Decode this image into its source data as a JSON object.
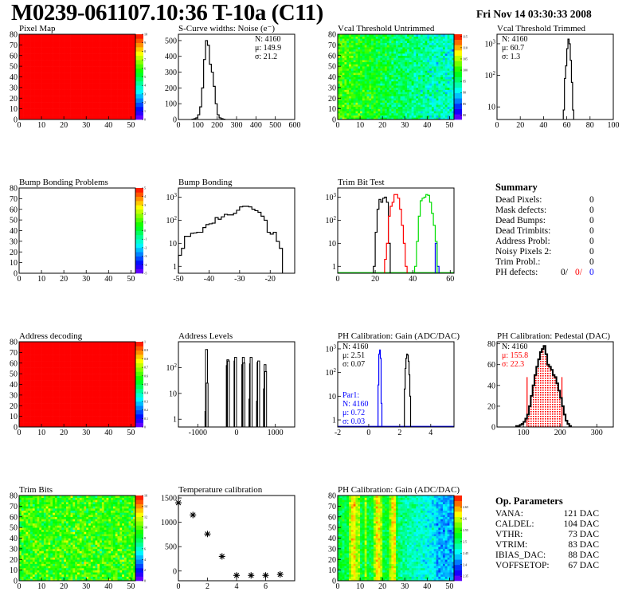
{
  "header": {
    "title": "M0239-061107.10:36 T-10a (C11)",
    "date": "Fri Nov 14 03:30:33 2008"
  },
  "summary": {
    "title": "Summary",
    "rows": [
      {
        "label": "Dead Pixels:",
        "value": "0"
      },
      {
        "label": "Mask defects:",
        "value": "0"
      },
      {
        "label": "Dead Bumps:",
        "value": "0"
      },
      {
        "label": "Dead Trimbits:",
        "value": "0"
      },
      {
        "label": "Address Probl:",
        "value": "0"
      },
      {
        "label": "Noisy Pixels 2:",
        "value": "0"
      },
      {
        "label": "Trim Probl.:",
        "value": "0"
      }
    ],
    "ph_defects": {
      "label": "PH defects:",
      "v1": "0/",
      "v2": "0/",
      "v3": "0",
      "c1": "#000000",
      "c2": "#ff0000",
      "c3": "#0000ff"
    }
  },
  "op_parameters": {
    "title": "Op. Parameters",
    "rows": [
      {
        "label": "VANA:",
        "value": "121 DAC"
      },
      {
        "label": "CALDEL:",
        "value": "104 DAC"
      },
      {
        "label": "VTHR:",
        "value": "73 DAC"
      },
      {
        "label": "VTRIM:",
        "value": "83 DAC"
      },
      {
        "label": "IBIAS_DAC:",
        "value": "88 DAC"
      },
      {
        "label": "VOFFSETOP:",
        "value": "67 DAC"
      }
    ]
  },
  "chart_data": [
    {
      "id": "pixel-map",
      "title": "Pixel Map",
      "type": "heatmap",
      "row": 0,
      "col": 0,
      "xlim": [
        0,
        52
      ],
      "ylim": [
        0,
        80
      ],
      "xticks": [
        0,
        10,
        20,
        30,
        40,
        50
      ],
      "yticks": [
        0,
        10,
        20,
        30,
        40,
        50,
        60,
        70,
        80
      ],
      "zlim": [
        0,
        10
      ],
      "zticks": [
        0,
        1,
        2,
        3,
        4,
        5,
        6,
        7,
        8,
        9,
        10
      ],
      "fill": "uniform",
      "uniform_value": 10
    },
    {
      "id": "s-curve",
      "title": "S-Curve widths: Noise (e⁻)",
      "type": "bar",
      "row": 0,
      "col": 1,
      "xlim": [
        0,
        600
      ],
      "ylim": [
        0,
        540
      ],
      "xticks": [
        0,
        100,
        200,
        300,
        400,
        500,
        600
      ],
      "yticks": [
        0,
        100,
        200,
        300,
        400,
        500
      ],
      "ylog": false,
      "series": [
        {
          "x0": 70,
          "bw": 10,
          "color": "#000000",
          "values": [
            2,
            5,
            10,
            30,
            80,
            200,
            380,
            500,
            470,
            350,
            300,
            210,
            100,
            30,
            10,
            5,
            2
          ]
        }
      ],
      "stats": {
        "corner": "top-right",
        "lines": [
          {
            "text": "N: 4160",
            "color": "#000000"
          },
          {
            "text": "μ: 149.9",
            "color": "#000000"
          },
          {
            "text": "σ: 21.2",
            "color": "#000000"
          }
        ]
      }
    },
    {
      "id": "vcal-untrimmed",
      "title": "Vcal Threshold Untrimmed",
      "type": "heatmap",
      "row": 0,
      "col": 2,
      "xlim": [
        0,
        52
      ],
      "ylim": [
        0,
        80
      ],
      "xticks": [
        0,
        10,
        20,
        30,
        40,
        50
      ],
      "yticks": [
        0,
        10,
        20,
        30,
        40,
        50,
        60,
        70,
        80
      ],
      "zlim": [
        78,
        116
      ],
      "zticks": [
        80,
        85,
        90,
        95,
        100,
        105,
        110,
        115
      ],
      "fill": "vcal"
    },
    {
      "id": "vcal-trimmed",
      "title": "Vcal Threshold Trimmed",
      "type": "bar",
      "row": 0,
      "col": 3,
      "xlim": [
        0,
        100
      ],
      "ylim": [
        4,
        2000
      ],
      "xticks": [
        0,
        20,
        40,
        60,
        80,
        100
      ],
      "yticks": [
        10,
        100,
        1000
      ],
      "ylog": true,
      "series": [
        {
          "x0": 57,
          "bw": 1,
          "color": "#000000",
          "values": [
            8,
            80,
            200,
            700,
            1400,
            1000,
            300,
            60,
            8
          ]
        }
      ],
      "stats": {
        "corner": "top-left",
        "lines": [
          {
            "text": "N: 4160",
            "color": "#000000"
          },
          {
            "text": "μ: 60.7",
            "color": "#000000"
          },
          {
            "text": "σ:  1.3",
            "color": "#000000"
          }
        ]
      }
    },
    {
      "id": "bump-problems",
      "title": "Bump Bonding Problems",
      "type": "heatmap",
      "row": 1,
      "col": 0,
      "xlim": [
        0,
        52
      ],
      "ylim": [
        0,
        80
      ],
      "xticks": [
        0,
        10,
        20,
        30,
        40,
        50
      ],
      "yticks": [
        0,
        10,
        20,
        30,
        40,
        50,
        60,
        70,
        80
      ],
      "zlim": [
        -5,
        5
      ],
      "zticks": [
        -5,
        -4,
        -3,
        -2,
        -1,
        0,
        1,
        2,
        3,
        4,
        5
      ],
      "fill": "empty"
    },
    {
      "id": "bump-bonding",
      "title": "Bump Bonding",
      "type": "bar",
      "row": 1,
      "col": 1,
      "xlim": [
        -50,
        -12
      ],
      "ylim": [
        0.5,
        2500
      ],
      "xticks": [
        -50,
        -40,
        -30,
        -20
      ],
      "yticks": [
        1,
        10,
        100,
        1000
      ],
      "ylog": true,
      "series": [
        {
          "x0": -50,
          "bw": 1,
          "color": "#000000",
          "values": [
            3,
            6,
            20,
            20,
            27,
            28,
            30,
            30,
            48,
            65,
            70,
            75,
            130,
            110,
            140,
            180,
            170,
            170,
            200,
            270,
            380,
            400,
            400,
            380,
            300,
            260,
            220,
            150,
            100,
            30,
            25,
            30,
            12,
            6
          ]
        }
      ]
    },
    {
      "id": "trim-bit-test",
      "title": "Trim Bit Test",
      "type": "bar",
      "row": 1,
      "col": 2,
      "xlim": [
        0,
        62
      ],
      "ylim": [
        0.5,
        2500
      ],
      "xticks": [
        0,
        20,
        40,
        60
      ],
      "yticks": [
        1,
        10,
        100,
        1000
      ],
      "ylog": true,
      "baseline_color": "#00dd00",
      "series": [
        {
          "x0": 19,
          "bw": 1,
          "color": "#000000",
          "values": [
            1,
            30,
            300,
            800,
            600,
            900,
            1000,
            600,
            10
          ]
        },
        {
          "x0": 25,
          "bw": 1,
          "color": "#ff0000",
          "values": [
            2,
            10,
            150,
            400,
            600,
            1300,
            1300,
            900,
            300,
            60,
            10,
            1
          ]
        },
        {
          "x0": 52,
          "bw": 1,
          "color": "#0000ff",
          "values": [
            10,
            1
          ]
        },
        {
          "x0": 41,
          "bw": 1,
          "color": "#00dd00",
          "values": [
            1,
            12,
            150,
            700,
            900,
            1000,
            1300,
            1200,
            600,
            200,
            60,
            12
          ]
        }
      ]
    },
    {
      "id": "address-decoding",
      "title": "Address decoding",
      "type": "heatmap",
      "row": 2,
      "col": 0,
      "xlim": [
        0,
        52
      ],
      "ylim": [
        0,
        80
      ],
      "xticks": [
        0,
        10,
        20,
        30,
        40,
        50
      ],
      "yticks": [
        0,
        10,
        20,
        30,
        40,
        50,
        60,
        70,
        80
      ],
      "zlim": [
        0,
        1
      ],
      "zticks": [
        0,
        0.1,
        0.2,
        0.3,
        0.4,
        0.5,
        0.6,
        0.7,
        0.8,
        0.9,
        1
      ],
      "fill": "uniform",
      "uniform_value": 1
    },
    {
      "id": "address-levels",
      "title": "Address Levels",
      "type": "bar",
      "row": 2,
      "col": 1,
      "xlim": [
        -1500,
        1500
      ],
      "ylim": [
        0.5,
        1000
      ],
      "xticks": [
        -1000,
        0,
        1000
      ],
      "yticks": [
        1,
        10,
        100
      ],
      "ylog": true,
      "peaks": [
        [
          -790,
          2
        ],
        [
          -775,
          500
        ],
        [
          -760,
          25
        ],
        [
          -240,
          120
        ],
        [
          -225,
          200
        ],
        [
          -210,
          180
        ],
        [
          -40,
          180
        ],
        [
          -25,
          250
        ],
        [
          160,
          130
        ],
        [
          175,
          250
        ],
        [
          190,
          150
        ],
        [
          345,
          6
        ],
        [
          360,
          140
        ],
        [
          375,
          250
        ],
        [
          540,
          5
        ],
        [
          555,
          160
        ],
        [
          570,
          180
        ],
        [
          720,
          15
        ],
        [
          735,
          130
        ],
        [
          750,
          70
        ]
      ]
    },
    {
      "id": "ph-gain",
      "title": "PH Calibration: Gain (ADC/DAC)",
      "type": "bar",
      "row": 2,
      "col": 2,
      "xlim": [
        -2,
        5.5
      ],
      "ylim": [
        0.5,
        2000
      ],
      "xticks": [
        -2,
        0,
        2,
        4
      ],
      "yticks": [
        1,
        10,
        100,
        1000
      ],
      "ylog": true,
      "baseline_color": "#0000ff",
      "series": [
        {
          "x0": 2.3,
          "bw": 0.05,
          "color": "#000000",
          "values": [
            20,
            150,
            400,
            600,
            550,
            300,
            80,
            10
          ]
        },
        {
          "x0": 0.6,
          "bw": 0.05,
          "color": "#0000ff",
          "values": [
            30,
            600,
            900,
            400,
            5
          ]
        }
      ],
      "stats": {
        "corner": "top-left",
        "lines": [
          {
            "text": "N: 4160",
            "color": "#000000"
          },
          {
            "text": "μ: 2.51",
            "color": "#000000"
          },
          {
            "text": "σ: 0.07",
            "color": "#000000"
          }
        ]
      },
      "stats2": {
        "corner": "bottom-left",
        "lines": [
          {
            "text": "Par1:",
            "color": "#0000ff"
          },
          {
            "text": "N: 4160",
            "color": "#0000ff"
          },
          {
            "text": "μ: 0.72",
            "color": "#0000ff"
          },
          {
            "text": "σ: 0.03",
            "color": "#0000ff"
          }
        ]
      }
    },
    {
      "id": "ph-pedestal",
      "title": "PH Calibration: Pedestal (DAC)",
      "type": "bar",
      "row": 2,
      "col": 3,
      "xlim": [
        28,
        345
      ],
      "ylim": [
        0,
        82
      ],
      "xticks": [
        100,
        200,
        300
      ],
      "yticks": [
        0,
        20,
        40,
        60,
        80
      ],
      "ylog": false,
      "series": [
        {
          "x0": 80,
          "bw": 5,
          "color": "#000000",
          "values": [
            1,
            1,
            2,
            3,
            5,
            8,
            12,
            20,
            30,
            40,
            50,
            58,
            65,
            72,
            75,
            78,
            70,
            60,
            58,
            55,
            50,
            48,
            42,
            35,
            28,
            20,
            12,
            6,
            3,
            1
          ]
        }
      ],
      "fit_range": [
        110,
        205
      ],
      "fit_color": "#ff0000",
      "stats": {
        "corner": "top-left",
        "lines": [
          {
            "text": "N: 4160",
            "color": "#000000"
          },
          {
            "text": "μ: 155.8",
            "color": "#ff0000"
          },
          {
            "text": "σ: 22.3",
            "color": "#ff0000"
          }
        ]
      }
    },
    {
      "id": "trim-bits",
      "title": "Trim Bits",
      "type": "heatmap",
      "row": 3,
      "col": 0,
      "xlim": [
        0,
        52
      ],
      "ylim": [
        0,
        80
      ],
      "xticks": [
        0,
        10,
        20,
        30,
        40,
        50
      ],
      "yticks": [
        0,
        10,
        20,
        30,
        40,
        50,
        60,
        70,
        80
      ],
      "zlim": [
        0,
        16
      ],
      "zticks": [
        0,
        2,
        4,
        6,
        8,
        10,
        12,
        14,
        16
      ],
      "fill": "trim"
    },
    {
      "id": "temperature-calibration",
      "title": "Temperature calibration",
      "type": "scatter",
      "row": 3,
      "col": 1,
      "xlim": [
        0,
        8
      ],
      "ylim": [
        -200,
        1550
      ],
      "xticks": [
        0,
        2,
        4,
        6
      ],
      "yticks": [
        0,
        500,
        1000,
        1500
      ],
      "points": [
        [
          0,
          1400
        ],
        [
          1,
          1150
        ],
        [
          2,
          760
        ],
        [
          3,
          300
        ],
        [
          4,
          -90
        ],
        [
          5,
          -90
        ],
        [
          6,
          -90
        ],
        [
          7,
          -70
        ]
      ]
    },
    {
      "id": "ph-gain-map",
      "title": "PH Calibration: Gain (ADC/DAC)",
      "type": "heatmap",
      "row": 3,
      "col": 2,
      "xlim": [
        0,
        52
      ],
      "ylim": [
        0,
        80
      ],
      "xticks": [
        0,
        10,
        20,
        30,
        40,
        50
      ],
      "yticks": [
        0,
        10,
        20,
        30,
        40,
        50,
        60,
        70,
        80
      ],
      "zlim": [
        2.33,
        2.7
      ],
      "zticks": [
        2.35,
        2.4,
        2.45,
        2.5,
        2.55,
        2.6,
        2.65
      ],
      "fill": "phgain"
    }
  ]
}
